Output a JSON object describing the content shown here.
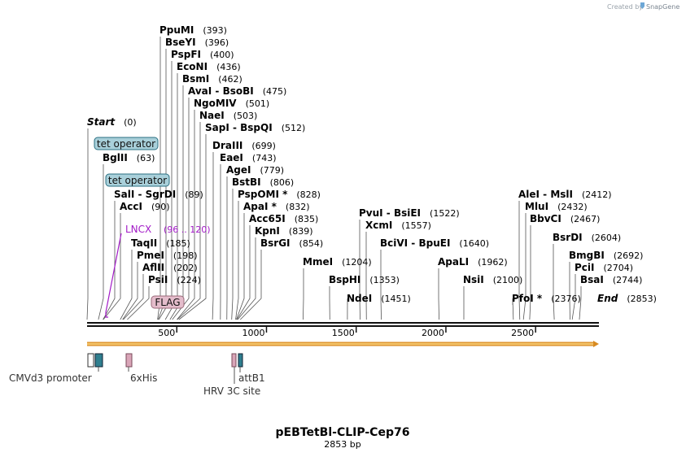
{
  "credit": {
    "prefix": "Created by",
    "brand": "SnapGene"
  },
  "title": "pEBTetBl-CLIP-Cep76",
  "subtitle": "2853 bp",
  "sequence_length": 2853,
  "colors": {
    "backbone": "#111111",
    "feature_bar": "#f3c46b",
    "feature_bar_edge": "#d88a20",
    "tet_box": "#a9d0da",
    "tet_box_edge": "#2a6f82",
    "flag_box": "#e4bccb",
    "flag_box_edge": "#9a6a7a",
    "lncx": "#a31cc7",
    "promoter_teal": "#2f7f8f"
  },
  "axis_ticks": [
    500,
    1000,
    1500,
    2000,
    2500
  ],
  "labels": [
    {
      "name": "Start",
      "pos": "(0)",
      "site": 0,
      "italic": true
    },
    {
      "name": "PpuMI",
      "pos": "(393)",
      "site": 393
    },
    {
      "name": "BseYI",
      "pos": "(396)",
      "site": 396
    },
    {
      "name": "PspFI",
      "pos": "(400)",
      "site": 400
    },
    {
      "name": "EcoNI",
      "pos": "(436)",
      "site": 436
    },
    {
      "name": "BsmI",
      "pos": "(462)",
      "site": 462
    },
    {
      "name": "AvaI  - BsoBI",
      "pos": "(475)",
      "site": 475
    },
    {
      "name": "NgoMIV",
      "pos": "(501)",
      "site": 501
    },
    {
      "name": "NaeI",
      "pos": "(503)",
      "site": 503
    },
    {
      "name": "SapI  - BspQI",
      "pos": "(512)",
      "site": 512
    },
    {
      "name": "BglII",
      "pos": "(63)",
      "site": 63
    },
    {
      "name": "DraIII",
      "pos": "(699)",
      "site": 699
    },
    {
      "name": "EaeI",
      "pos": "(743)",
      "site": 743
    },
    {
      "name": "AgeI",
      "pos": "(779)",
      "site": 779
    },
    {
      "name": "BstBI",
      "pos": "(806)",
      "site": 806
    },
    {
      "name": "SalI  - SgrDI",
      "pos": "(89)",
      "site": 89
    },
    {
      "name": "PspOMI *",
      "pos": "(828)",
      "site": 828
    },
    {
      "name": "AccI",
      "pos": "(90)",
      "site": 90
    },
    {
      "name": "ApaI *",
      "pos": "(832)",
      "site": 832
    },
    {
      "name": "Acc65I",
      "pos": "(835)",
      "site": 835
    },
    {
      "name": "KpnI",
      "pos": "(839)",
      "site": 839
    },
    {
      "name": "TaqII",
      "pos": "(185)",
      "site": 185
    },
    {
      "name": "BsrGI",
      "pos": "(854)",
      "site": 854
    },
    {
      "name": "PmeI",
      "pos": "(198)",
      "site": 198
    },
    {
      "name": "AflII",
      "pos": "(202)",
      "site": 202
    },
    {
      "name": "PsiI",
      "pos": "(224)",
      "site": 224
    },
    {
      "name": "PvuI  - BsiEI",
      "pos": "(1522)",
      "site": 1522
    },
    {
      "name": "XcmI",
      "pos": "(1557)",
      "site": 1557
    },
    {
      "name": "BciVI  - BpuEI",
      "pos": "(1640)",
      "site": 1640
    },
    {
      "name": "MmeI",
      "pos": "(1204)",
      "site": 1204
    },
    {
      "name": "ApaLI",
      "pos": "(1962)",
      "site": 1962
    },
    {
      "name": "BspHI",
      "pos": "(1353)",
      "site": 1353
    },
    {
      "name": "NsiI",
      "pos": "(2100)",
      "site": 2100
    },
    {
      "name": "NdeI",
      "pos": "(1451)",
      "site": 1451
    },
    {
      "name": "AleI  - MslI",
      "pos": "(2412)",
      "site": 2412
    },
    {
      "name": "MluI",
      "pos": "(2432)",
      "site": 2432
    },
    {
      "name": "BbvCI",
      "pos": "(2467)",
      "site": 2467
    },
    {
      "name": "BsrDI",
      "pos": "(2604)",
      "site": 2604
    },
    {
      "name": "BmgBI",
      "pos": "(2692)",
      "site": 2692
    },
    {
      "name": "PciI",
      "pos": "(2704)",
      "site": 2704
    },
    {
      "name": "BsaI",
      "pos": "(2744)",
      "site": 2744
    },
    {
      "name": "PfoI *",
      "pos": "(2376)",
      "site": 2376
    },
    {
      "name": "End",
      "pos": "(2853)",
      "site": 2853,
      "italic": true
    }
  ],
  "boxed_features": [
    {
      "name": "tet operator"
    },
    {
      "name": "tet operator"
    },
    {
      "name": "FLAG"
    }
  ],
  "lncx": {
    "name": "LNCX",
    "range": "(96 .. 120)",
    "start": 96,
    "end": 120
  },
  "bottom_features": [
    {
      "name": "CMVd3 promoter"
    },
    {
      "name": "6xHis"
    },
    {
      "name": "attB1"
    },
    {
      "name": "HRV 3C site"
    }
  ]
}
